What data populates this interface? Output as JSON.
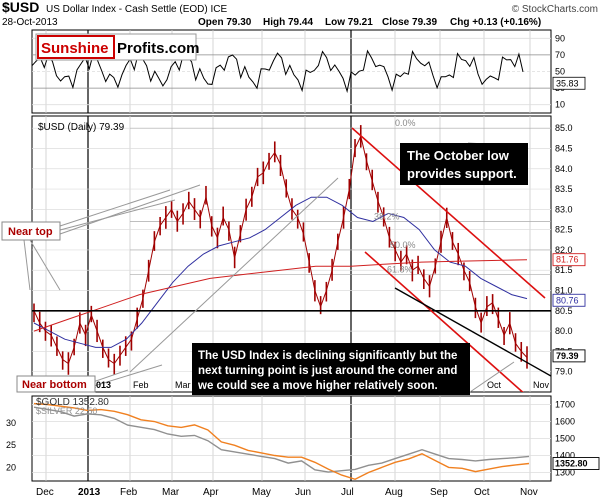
{
  "header": {
    "symbol": "$USD",
    "name": "US Dollar Index - Cash Settle (EOD) ICE",
    "date": "28-Oct-2013",
    "open": "Open 79.30",
    "high": "High 79.44",
    "low": "Low 79.21",
    "close": "Close 79.39",
    "change": "Chg +0.13 (+0.16%)",
    "watermark": "© StockCharts.com",
    "logo_red": "Sunshine",
    "logo_black": "Profits.com"
  },
  "colors": {
    "price": "#a00000",
    "ma_short": "#3030a0",
    "ma_long": "#d02020",
    "trend_red": "#dd1010",
    "gold": "#f08020",
    "silver": "#909090",
    "annotation_bg": "#000000",
    "label_red": "#aa0000"
  },
  "chart_data": [
    {
      "type": "line",
      "name": "RSI panel",
      "ticks": [
        "90",
        "70",
        "50",
        "30",
        "10"
      ],
      "levels": [
        90,
        70,
        50,
        30,
        10
      ],
      "last_value_label": "35.83",
      "last_value": 35.83,
      "ylim": [
        0,
        100
      ]
    },
    {
      "type": "line",
      "name": "USD price panel",
      "legend": "$USD (Daily) 79.39",
      "x_ticks": [
        "Dec",
        "2013",
        "Feb",
        "Mar",
        "Apr",
        "May",
        "Jun",
        "Jul",
        "Aug",
        "Sep",
        "Oct",
        "Nov"
      ],
      "y_ticks": [
        "85.0",
        "84.5",
        "84.0",
        "83.5",
        "83.0",
        "82.5",
        "82.0",
        "81.5",
        "81.0",
        "80.5",
        "80.0",
        "79.5",
        "79.0"
      ],
      "ylim": [
        78.5,
        85.3
      ],
      "price_labels": [
        {
          "text": "81.76",
          "value": 81.76,
          "color": "#d02020"
        },
        {
          "text": "80.76",
          "value": 80.76,
          "color": "#3030a0"
        },
        {
          "text": "79.39",
          "value": 79.39,
          "color": "#000000"
        }
      ],
      "series": [
        {
          "name": "$USD",
          "values": [
            80.5,
            80.2,
            80.0,
            79.9,
            79.6,
            79.3,
            79.2,
            79.6,
            80.2,
            79.9,
            80.4,
            80.0,
            79.6,
            79.3,
            79.2,
            79.4,
            79.6,
            79.8,
            80.3,
            80.8,
            81.5,
            82.2,
            82.6,
            82.8,
            83.0,
            82.7,
            82.9,
            83.2,
            83.0,
            82.8,
            83.3,
            82.6,
            82.3,
            82.8,
            82.5,
            81.8,
            82.4,
            83.0,
            83.3,
            83.8,
            83.9,
            84.2,
            84.4,
            84.1,
            83.5,
            83.0,
            82.8,
            82.4,
            81.7,
            81.0,
            80.6,
            81.0,
            81.5,
            82.2,
            82.8,
            83.5,
            84.5,
            84.8,
            84.2,
            83.7,
            83.2,
            82.8,
            82.3,
            82.0,
            81.7,
            81.9,
            81.5,
            81.6,
            81.3,
            81.1,
            81.6,
            82.2,
            82.8,
            82.2,
            81.9,
            81.5,
            81.2,
            80.6,
            80.2,
            80.6,
            80.7,
            80.3,
            79.9,
            80.2,
            79.7,
            79.5,
            79.35
          ],
          "color": "#a00000"
        },
        {
          "name": "MA short",
          "values": [
            80.2,
            80.0,
            79.8,
            79.7,
            79.6,
            79.6,
            79.8,
            80.2,
            80.7,
            81.2,
            81.6,
            81.9,
            82.1,
            82.2,
            82.3,
            82.5,
            82.8,
            83.1,
            83.3,
            83.3,
            83.1,
            82.8,
            82.7,
            82.9,
            82.8,
            82.5,
            82.0,
            81.7,
            81.6,
            81.3,
            81.1,
            80.9,
            80.8
          ],
          "color": "#3030a0"
        },
        {
          "name": "MA long",
          "values": [
            80.0,
            80.3,
            80.6,
            80.9,
            81.1,
            81.3,
            81.4,
            81.5,
            81.6,
            81.6,
            81.65,
            81.7,
            81.72,
            81.74,
            81.76
          ],
          "color": "#d02020"
        }
      ],
      "fib_labels": [
        "0.0%",
        "38.2%",
        "50.0%",
        "61.8%"
      ],
      "fib_levels": [
        85.0,
        82.7,
        82.0,
        81.4
      ],
      "horizontal_support": 80.5,
      "annotations": [
        "The October low\nprovides support.",
        "The USD Index is declining significantly but the\nnext turning point is just around the corner and\nwe could see a move higher relatively soon."
      ],
      "near_top": "Near top",
      "near_bottom": "Near bottom"
    },
    {
      "type": "line",
      "name": "Gold and silver panel",
      "legend_gold": "$GOLD 1352.80",
      "legend_silver": "$SILVER 22.50",
      "left_ticks": [
        "30",
        "25",
        "20"
      ],
      "right_ticks": [
        "1700",
        "1600",
        "1500",
        "1400",
        "1300"
      ],
      "last_gold_label": "1352.80",
      "gold_ylim": [
        1250,
        1750
      ],
      "series": [
        {
          "name": "$GOLD",
          "values": [
            1705,
            1700,
            1690,
            1680,
            1665,
            1670,
            1660,
            1640,
            1610,
            1600,
            1575,
            1565,
            1580,
            1550,
            1480,
            1460,
            1430,
            1415,
            1400,
            1390,
            1390,
            1360,
            1320,
            1285,
            1260,
            1300,
            1330,
            1360,
            1380,
            1410,
            1370,
            1330,
            1325,
            1305,
            1320,
            1335,
            1345,
            1353
          ],
          "color": "#f08020"
        },
        {
          "name": "$SILVER",
          "values": [
            33.5,
            33.0,
            32.5,
            31.5,
            32.0,
            31.8,
            31.0,
            29.5,
            29.0,
            28.5,
            27.5,
            27.0,
            27.2,
            26.0,
            24.0,
            23.5,
            23.0,
            22.5,
            22.0,
            21.0,
            21.5,
            19.5,
            19.0,
            19.3,
            19.6,
            20.5,
            21.0,
            22.0,
            23.0,
            24.0,
            23.0,
            22.0,
            21.8,
            21.5,
            21.8,
            22.0,
            22.2,
            22.5
          ],
          "color": "#909090"
        }
      ]
    }
  ]
}
